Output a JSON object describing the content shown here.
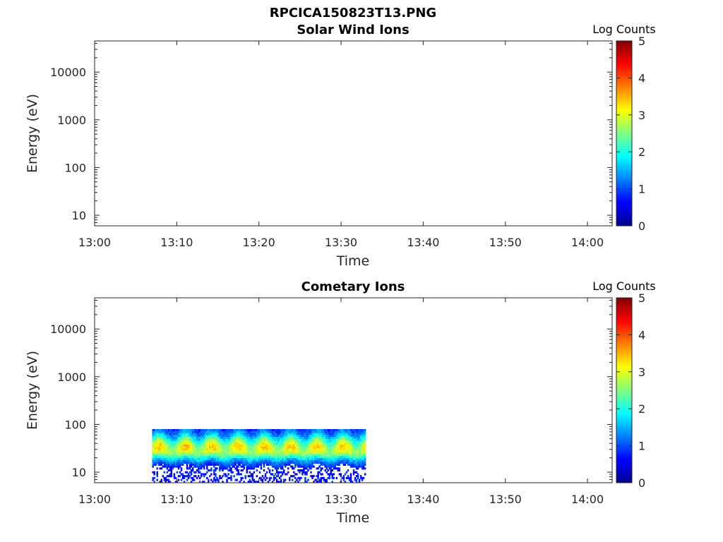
{
  "figure_title": "RPCICA150823T13.PNG",
  "chart_data": [
    {
      "type": "heatmap",
      "title": "Solar Wind Ions",
      "xlabel": "Time",
      "ylabel": "Energy (eV)",
      "x_ticks": [
        "13:00",
        "13:10",
        "13:20",
        "13:30",
        "13:40",
        "13:50",
        "14:00"
      ],
      "xlim_minutes": [
        0,
        63
      ],
      "y_ticks": [
        10,
        100,
        1000,
        10000
      ],
      "ylim": [
        6,
        45000
      ],
      "y_scale": "log",
      "colorbar_label": "Log Counts",
      "colorbar_ticks": [
        0,
        1,
        2,
        3,
        4,
        5
      ],
      "colormap": "jet",
      "data": []
    },
    {
      "type": "heatmap",
      "title": "Cometary Ions",
      "xlabel": "Time",
      "ylabel": "Energy (eV)",
      "x_ticks": [
        "13:00",
        "13:10",
        "13:20",
        "13:30",
        "13:40",
        "13:50",
        "14:00"
      ],
      "xlim_minutes": [
        0,
        63
      ],
      "y_ticks": [
        10,
        100,
        1000,
        10000
      ],
      "ylim": [
        6,
        45000
      ],
      "y_scale": "log",
      "colorbar_label": "Log Counts",
      "colorbar_ticks": [
        0,
        1,
        2,
        3,
        4,
        5
      ],
      "colormap": "jet",
      "data_summary": {
        "time_start": "13:07",
        "time_end": "13:33",
        "energy_range_eV": [
          6,
          80
        ],
        "peak_energy_eV": 30,
        "peak_log_counts": 2.8,
        "oscillation_period_minutes": 3.2
      }
    }
  ]
}
